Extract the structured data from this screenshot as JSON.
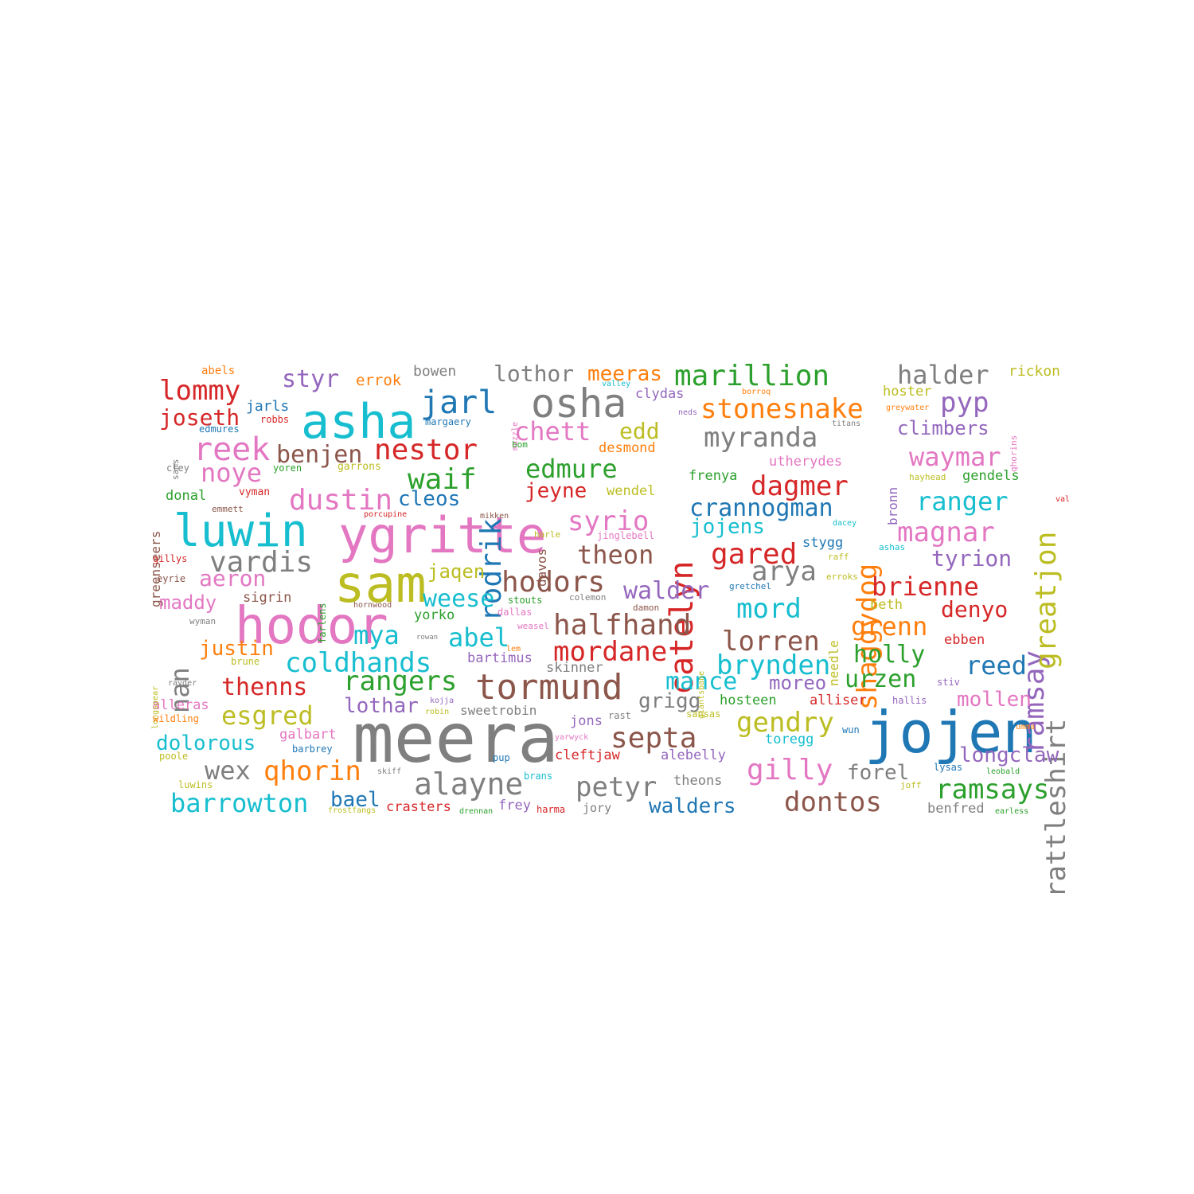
{
  "palette": {
    "blue": "#1f77b4",
    "orange": "#ff7f0e",
    "green": "#2ca02c",
    "red": "#d62728",
    "purple": "#9467bd",
    "brown": "#8c564b",
    "pink": "#e377c2",
    "gray": "#7f7f7f",
    "olive": "#bcbd22",
    "cyan": "#17becf"
  },
  "words": [
    {
      "text": "meera",
      "color": "gray",
      "weight": 1.0
    },
    {
      "text": "jojen",
      "color": "blue",
      "weight": 0.82
    },
    {
      "text": "ygritte",
      "color": "pink",
      "weight": 0.72
    },
    {
      "text": "sam",
      "color": "olive",
      "weight": 0.74
    },
    {
      "text": "hodor",
      "color": "pink",
      "weight": 0.74
    },
    {
      "text": "asha",
      "color": "cyan",
      "weight": 0.7
    },
    {
      "text": "luwin",
      "color": "cyan",
      "weight": 0.66
    },
    {
      "text": "osha",
      "color": "gray",
      "weight": 0.6
    },
    {
      "text": "tormund",
      "color": "brown",
      "weight": 0.52
    },
    {
      "text": "catelyn",
      "color": "red",
      "weight": 0.5
    },
    {
      "text": "jarl",
      "color": "blue",
      "weight": 0.48
    },
    {
      "text": "reek",
      "color": "pink",
      "weight": 0.48
    },
    {
      "text": "alayne",
      "color": "gray",
      "weight": 0.46
    },
    {
      "text": "halfhand",
      "color": "brown",
      "weight": 0.44
    },
    {
      "text": "rodrik",
      "color": "blue",
      "weight": 0.44
    },
    {
      "text": "marillion",
      "color": "green",
      "weight": 0.44
    },
    {
      "text": "ramsay",
      "color": "purple",
      "weight": 0.44
    },
    {
      "text": "septa",
      "color": "brown",
      "weight": 0.44
    },
    {
      "text": "gilly",
      "color": "pink",
      "weight": 0.44
    },
    {
      "text": "greatjon",
      "color": "olive",
      "weight": 0.44
    },
    {
      "text": "hodors",
      "color": "brown",
      "weight": 0.42
    },
    {
      "text": "waif",
      "color": "green",
      "weight": 0.42
    },
    {
      "text": "dustin",
      "color": "pink",
      "weight": 0.42
    },
    {
      "text": "nestor",
      "color": "red",
      "weight": 0.42
    },
    {
      "text": "gared",
      "color": "red",
      "weight": 0.42
    },
    {
      "text": "lommy",
      "color": "red",
      "weight": 0.4
    },
    {
      "text": "vardis",
      "color": "gray",
      "weight": 0.42
    },
    {
      "text": "myranda",
      "color": "gray",
      "weight": 0.4
    },
    {
      "text": "coldhands",
      "color": "cyan",
      "weight": 0.4
    },
    {
      "text": "shaggydog",
      "color": "orange",
      "weight": 0.4
    },
    {
      "text": "lorren",
      "color": "brown",
      "weight": 0.4
    },
    {
      "text": "mordane",
      "color": "red",
      "weight": 0.4
    },
    {
      "text": "stonesnake",
      "color": "orange",
      "weight": 0.4
    },
    {
      "text": "syrio",
      "color": "pink",
      "weight": 0.4
    },
    {
      "text": "gendry",
      "color": "olive",
      "weight": 0.4
    },
    {
      "text": "petyr",
      "color": "gray",
      "weight": 0.4
    },
    {
      "text": "dontos",
      "color": "brown",
      "weight": 0.4
    },
    {
      "text": "rattleshirt",
      "color": "gray",
      "weight": 0.4
    },
    {
      "text": "ramsays",
      "color": "green",
      "weight": 0.38
    },
    {
      "text": "arya",
      "color": "gray",
      "weight": 0.38
    },
    {
      "text": "pyp",
      "color": "purple",
      "weight": 0.38
    },
    {
      "text": "magnar",
      "color": "pink",
      "weight": 0.38
    },
    {
      "text": "brynden",
      "color": "cyan",
      "weight": 0.38
    },
    {
      "text": "dagmer",
      "color": "red",
      "weight": 0.38
    },
    {
      "text": "rangers",
      "color": "green",
      "weight": 0.38
    },
    {
      "text": "qhorin",
      "color": "orange",
      "weight": 0.38
    },
    {
      "text": "mord",
      "color": "cyan",
      "weight": 0.38
    },
    {
      "text": "halder",
      "color": "gray",
      "weight": 0.36
    },
    {
      "text": "chett",
      "color": "pink",
      "weight": 0.36
    },
    {
      "text": "ranger",
      "color": "cyan",
      "weight": 0.36
    },
    {
      "text": "waymar",
      "color": "pink",
      "weight": 0.36
    },
    {
      "text": "theon",
      "color": "brown",
      "weight": 0.36
    },
    {
      "text": "noye",
      "color": "pink",
      "weight": 0.36
    },
    {
      "text": "benjen",
      "color": "brown",
      "weight": 0.36
    },
    {
      "text": "edmure",
      "color": "green",
      "weight": 0.36
    },
    {
      "text": "abel",
      "color": "cyan",
      "weight": 0.36
    },
    {
      "text": "mya",
      "color": "cyan",
      "weight": 0.36
    },
    {
      "text": "nan",
      "color": "gray",
      "weight": 0.36
    },
    {
      "text": "brienne",
      "color": "red",
      "weight": 0.36
    },
    {
      "text": "grenn",
      "color": "orange",
      "weight": 0.36
    },
    {
      "text": "crannogman",
      "color": "blue",
      "weight": 0.36
    },
    {
      "text": "esgred",
      "color": "olive",
      "weight": 0.36
    },
    {
      "text": "barrowton",
      "color": "cyan",
      "weight": 0.36
    },
    {
      "text": "wex",
      "color": "gray",
      "weight": 0.36
    },
    {
      "text": "reed",
      "color": "blue",
      "weight": 0.36
    },
    {
      "text": "mance",
      "color": "cyan",
      "weight": 0.34
    },
    {
      "text": "walder",
      "color": "purple",
      "weight": 0.34
    },
    {
      "text": "urzen",
      "color": "green",
      "weight": 0.34
    },
    {
      "text": "holly",
      "color": "green",
      "weight": 0.34
    },
    {
      "text": "weese",
      "color": "cyan",
      "weight": 0.34
    },
    {
      "text": "thenns",
      "color": "red",
      "weight": 0.34
    },
    {
      "text": "styr",
      "color": "purple",
      "weight": 0.34
    },
    {
      "text": "tyrion",
      "color": "purple",
      "weight": 0.32
    },
    {
      "text": "denyo",
      "color": "red",
      "weight": 0.32
    },
    {
      "text": "joseth",
      "color": "red",
      "weight": 0.32
    },
    {
      "text": "aeron",
      "color": "pink",
      "weight": 0.32
    },
    {
      "text": "edd",
      "color": "olive",
      "weight": 0.32
    },
    {
      "text": "lothor",
      "color": "gray",
      "weight": 0.32
    },
    {
      "text": "meeras",
      "color": "orange",
      "weight": 0.3
    },
    {
      "text": "cleos",
      "color": "blue",
      "weight": 0.3
    },
    {
      "text": "jeyne",
      "color": "red",
      "weight": 0.3
    },
    {
      "text": "jojens",
      "color": "cyan",
      "weight": 0.3
    },
    {
      "text": "grigg",
      "color": "gray",
      "weight": 0.3
    },
    {
      "text": "lothar",
      "color": "purple",
      "weight": 0.3
    },
    {
      "text": "dolorous",
      "color": "cyan",
      "weight": 0.3
    },
    {
      "text": "walders",
      "color": "blue",
      "weight": 0.3
    },
    {
      "text": "bael",
      "color": "blue",
      "weight": 0.3
    },
    {
      "text": "forel",
      "color": "gray",
      "weight": 0.3
    },
    {
      "text": "longclaw",
      "color": "purple",
      "weight": 0.3
    },
    {
      "text": "mollen",
      "color": "pink",
      "weight": 0.3
    },
    {
      "text": "climbers",
      "color": "purple",
      "weight": 0.28
    },
    {
      "text": "justin",
      "color": "orange",
      "weight": 0.3
    },
    {
      "text": "moreo",
      "color": "purple",
      "weight": 0.28
    },
    {
      "text": "jaqen",
      "color": "olive",
      "weight": 0.28
    },
    {
      "text": "maddy",
      "color": "pink",
      "weight": 0.28
    },
    {
      "text": "jarls",
      "color": "blue",
      "weight": 0.24
    },
    {
      "text": "rickon",
      "color": "olive",
      "weight": 0.22
    },
    {
      "text": "hoster",
      "color": "olive",
      "weight": 0.22
    },
    {
      "text": "errok",
      "color": "orange",
      "weight": 0.24
    },
    {
      "text": "bowen",
      "color": "gray",
      "weight": 0.22
    },
    {
      "text": "clydas",
      "color": "purple",
      "weight": 0.22
    },
    {
      "text": "desmond",
      "color": "orange",
      "weight": 0.22
    },
    {
      "text": "wendel",
      "color": "olive",
      "weight": 0.22
    },
    {
      "text": "frenya",
      "color": "green",
      "weight": 0.22
    },
    {
      "text": "utherydes",
      "color": "pink",
      "weight": 0.22
    },
    {
      "text": "gendels",
      "color": "green",
      "weight": 0.22
    },
    {
      "text": "stygg",
      "color": "blue",
      "weight": 0.22
    },
    {
      "text": "sigrin",
      "color": "brown",
      "weight": 0.22
    },
    {
      "text": "yorko",
      "color": "green",
      "weight": 0.22
    },
    {
      "text": "bartimus",
      "color": "purple",
      "weight": 0.22
    },
    {
      "text": "skinner",
      "color": "gray",
      "weight": 0.22
    },
    {
      "text": "hosteen",
      "color": "green",
      "weight": 0.22
    },
    {
      "text": "alliser",
      "color": "red",
      "weight": 0.22
    },
    {
      "text": "sweetrobin",
      "color": "gray",
      "weight": 0.22
    },
    {
      "text": "alleras",
      "color": "pink",
      "weight": 0.22
    },
    {
      "text": "galbart",
      "color": "pink",
      "weight": 0.22
    },
    {
      "text": "jons",
      "color": "purple",
      "weight": 0.22
    },
    {
      "text": "toregg",
      "color": "cyan",
      "weight": 0.22
    },
    {
      "text": "cleftjaw",
      "color": "red",
      "weight": 0.22
    },
    {
      "text": "alebelly",
      "color": "purple",
      "weight": 0.22
    },
    {
      "text": "theons",
      "color": "gray",
      "weight": 0.22
    },
    {
      "text": "crasters",
      "color": "red",
      "weight": 0.22
    },
    {
      "text": "frey",
      "color": "purple",
      "weight": 0.22
    },
    {
      "text": "jory",
      "color": "gray",
      "weight": 0.2
    },
    {
      "text": "benfred",
      "color": "gray",
      "weight": 0.22
    },
    {
      "text": "donal",
      "color": "green",
      "weight": 0.22
    },
    {
      "text": "ebben",
      "color": "red",
      "weight": 0.22
    },
    {
      "text": "beth",
      "color": "olive",
      "weight": 0.22
    },
    {
      "text": "greenseers",
      "color": "brown",
      "weight": 0.2
    },
    {
      "text": "bronn",
      "color": "purple",
      "weight": 0.2
    },
    {
      "text": "needle",
      "color": "olive",
      "weight": 0.2
    },
    {
      "text": "davos",
      "color": "brown",
      "weight": 0.2
    },
    {
      "text": "abels",
      "color": "orange",
      "weight": 0.18
    },
    {
      "text": "robbs",
      "color": "red",
      "weight": 0.16
    },
    {
      "text": "edmures",
      "color": "blue",
      "weight": 0.16
    },
    {
      "text": "margaery",
      "color": "blue",
      "weight": 0.16
    },
    {
      "text": "sams",
      "color": "gray",
      "weight": 0.14
    },
    {
      "text": "cley",
      "color": "gray",
      "weight": 0.16
    },
    {
      "text": "yoren",
      "color": "green",
      "weight": 0.16
    },
    {
      "text": "garrons",
      "color": "olive",
      "weight": 0.16
    },
    {
      "text": "vyman",
      "color": "red",
      "weight": 0.16
    },
    {
      "text": "emmett",
      "color": "brown",
      "weight": 0.14
    },
    {
      "text": "porcupine",
      "color": "red",
      "weight": 0.14
    },
    {
      "text": "mikken",
      "color": "brown",
      "weight": 0.14
    },
    {
      "text": "gillys",
      "color": "red",
      "weight": 0.16
    },
    {
      "text": "eyrie",
      "color": "brown",
      "weight": 0.16
    },
    {
      "text": "farlens",
      "color": "green",
      "weight": 0.16
    },
    {
      "text": "wyman",
      "color": "gray",
      "weight": 0.14
    },
    {
      "text": "hornwood",
      "color": "brown",
      "weight": 0.14
    },
    {
      "text": "stouts",
      "color": "green",
      "weight": 0.16
    },
    {
      "text": "dallas",
      "color": "pink",
      "weight": 0.16
    },
    {
      "text": "weasel",
      "color": "pink",
      "weight": 0.14
    },
    {
      "text": "lem",
      "color": "orange",
      "weight": 0.14
    },
    {
      "text": "rowan",
      "color": "gray",
      "weight": 0.12
    },
    {
      "text": "colemon",
      "color": "gray",
      "weight": 0.14
    },
    {
      "text": "damon",
      "color": "brown",
      "weight": 0.14
    },
    {
      "text": "harle",
      "color": "olive",
      "weight": 0.14
    },
    {
      "text": "jinglebell",
      "color": "pink",
      "weight": 0.14
    },
    {
      "text": "gretchel",
      "color": "blue",
      "weight": 0.14
    },
    {
      "text": "raff",
      "color": "olive",
      "weight": 0.14
    },
    {
      "text": "erroks",
      "color": "olive",
      "weight": 0.14
    },
    {
      "text": "ashas",
      "color": "cyan",
      "weight": 0.14
    },
    {
      "text": "dacey",
      "color": "cyan",
      "weight": 0.12
    },
    {
      "text": "hayhead",
      "color": "olive",
      "weight": 0.14
    },
    {
      "text": "val",
      "color": "red",
      "weight": 0.12
    },
    {
      "text": "borroq",
      "color": "orange",
      "weight": 0.12
    },
    {
      "text": "valley",
      "color": "cyan",
      "weight": 0.12
    },
    {
      "text": "neds",
      "color": "purple",
      "weight": 0.12
    },
    {
      "text": "titans",
      "color": "gray",
      "weight": 0.12
    },
    {
      "text": "greywater",
      "color": "orange",
      "weight": 0.12
    },
    {
      "text": "qhorins",
      "color": "pink",
      "weight": 0.14
    },
    {
      "text": "muzzle",
      "color": "pink",
      "weight": 0.12
    },
    {
      "text": "bom",
      "color": "green",
      "weight": 0.14
    },
    {
      "text": "giantsbane",
      "color": "olive",
      "weight": 0.12
    },
    {
      "text": "longspear",
      "color": "olive",
      "weight": 0.12
    },
    {
      "text": "rayder",
      "color": "gray",
      "weight": 0.12
    },
    {
      "text": "brune",
      "color": "olive",
      "weight": 0.14
    },
    {
      "text": "wildling",
      "color": "orange",
      "weight": 0.14
    },
    {
      "text": "poole",
      "color": "olive",
      "weight": 0.14
    },
    {
      "text": "barbrey",
      "color": "blue",
      "weight": 0.14
    },
    {
      "text": "luwins",
      "color": "olive",
      "weight": 0.14
    },
    {
      "text": "frostfangs",
      "color": "olive",
      "weight": 0.12
    },
    {
      "text": "skiff",
      "color": "gray",
      "weight": 0.12
    },
    {
      "text": "kojja",
      "color": "purple",
      "weight": 0.12
    },
    {
      "text": "robin",
      "color": "olive",
      "weight": 0.12
    },
    {
      "text": "yarwyck",
      "color": "pink",
      "weight": 0.12
    },
    {
      "text": "pup",
      "color": "blue",
      "weight": 0.14
    },
    {
      "text": "brans",
      "color": "cyan",
      "weight": 0.14
    },
    {
      "text": "rast",
      "color": "gray",
      "weight": 0.14
    },
    {
      "text": "sansas",
      "color": "olive",
      "weight": 0.14
    },
    {
      "text": "stiv",
      "color": "purple",
      "weight": 0.14
    },
    {
      "text": "hallis",
      "color": "purple",
      "weight": 0.14
    },
    {
      "text": "wun",
      "color": "blue",
      "weight": 0.14
    },
    {
      "text": "umma",
      "color": "orange",
      "weight": 0.12
    },
    {
      "text": "lysas",
      "color": "blue",
      "weight": 0.14
    },
    {
      "text": "leobald",
      "color": "green",
      "weight": 0.12
    },
    {
      "text": "joff",
      "color": "olive",
      "weight": 0.12
    },
    {
      "text": "drennan",
      "color": "green",
      "weight": 0.12
    },
    {
      "text": "harma",
      "color": "red",
      "weight": 0.14
    },
    {
      "text": "earless",
      "color": "green",
      "weight": 0.12
    }
  ]
}
